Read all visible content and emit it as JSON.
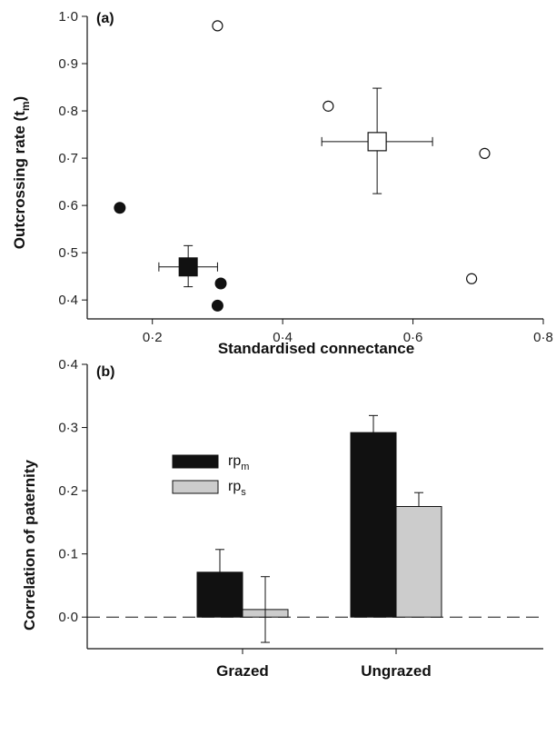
{
  "chart_data": [
    {
      "type": "scatter",
      "panel_label": "(a)",
      "xlabel": "Standardised connectance",
      "ylabel": "Outcrossing rate (t",
      "ylabel_sub": "m",
      "ylabel_close": ")",
      "xlim": [
        0.1,
        0.8
      ],
      "ylim": [
        0.36,
        1.0
      ],
      "x_ticks": [
        0.2,
        0.4,
        0.6,
        0.8
      ],
      "x_tick_labels": [
        "0·2",
        "0·4",
        "0·6",
        "0·8"
      ],
      "y_ticks": [
        0.4,
        0.5,
        0.6,
        0.7,
        0.8,
        0.9,
        1.0
      ],
      "y_tick_labels": [
        "0·4",
        "0·5",
        "0·6",
        "0·7",
        "0·8",
        "0·9",
        "1·0"
      ],
      "series": [
        {
          "marker": "open-circle",
          "points": [
            {
              "x": 0.3,
              "y": 0.98
            },
            {
              "x": 0.47,
              "y": 0.81
            },
            {
              "x": 0.71,
              "y": 0.71
            },
            {
              "x": 0.69,
              "y": 0.445
            }
          ]
        },
        {
          "marker": "filled-circle",
          "points": [
            {
              "x": 0.15,
              "y": 0.595
            },
            {
              "x": 0.305,
              "y": 0.435
            },
            {
              "x": 0.3,
              "y": 0.388
            }
          ]
        },
        {
          "marker": "open-square",
          "points": [
            {
              "x": 0.545,
              "y": 0.735,
              "x_err_low": 0.46,
              "x_err_high": 0.63,
              "y_err_low": 0.625,
              "y_err_high": 0.848
            }
          ]
        },
        {
          "marker": "filled-square",
          "points": [
            {
              "x": 0.255,
              "y": 0.47,
              "x_err_low": 0.21,
              "x_err_high": 0.3,
              "y_err_low": 0.428,
              "y_err_high": 0.515
            }
          ]
        }
      ],
      "grid": false
    },
    {
      "type": "bar",
      "panel_label": "(b)",
      "ylabel": "Correlation of paternity",
      "xlabel": "",
      "categories": [
        "Grazed",
        "Ungrazed"
      ],
      "ylim": [
        -0.05,
        0.4
      ],
      "y_ticks": [
        0.0,
        0.1,
        0.2,
        0.3,
        0.4
      ],
      "y_tick_labels": [
        "0·0",
        "0·1",
        "0·2",
        "0·3",
        "0·4"
      ],
      "series": [
        {
          "name": "rp",
          "name_sub": "m",
          "color": "#111111",
          "values": [
            0.071,
            0.292
          ],
          "err": [
            0.036,
            0.027
          ]
        },
        {
          "name": "rp",
          "name_sub": "s",
          "color": "#cccccc",
          "values": [
            0.012,
            0.175
          ],
          "err": [
            0.052,
            0.022
          ]
        }
      ],
      "reference_line": {
        "y": 0.0,
        "style": "dashed"
      },
      "legend_position": "top-left",
      "grid": false
    }
  ]
}
